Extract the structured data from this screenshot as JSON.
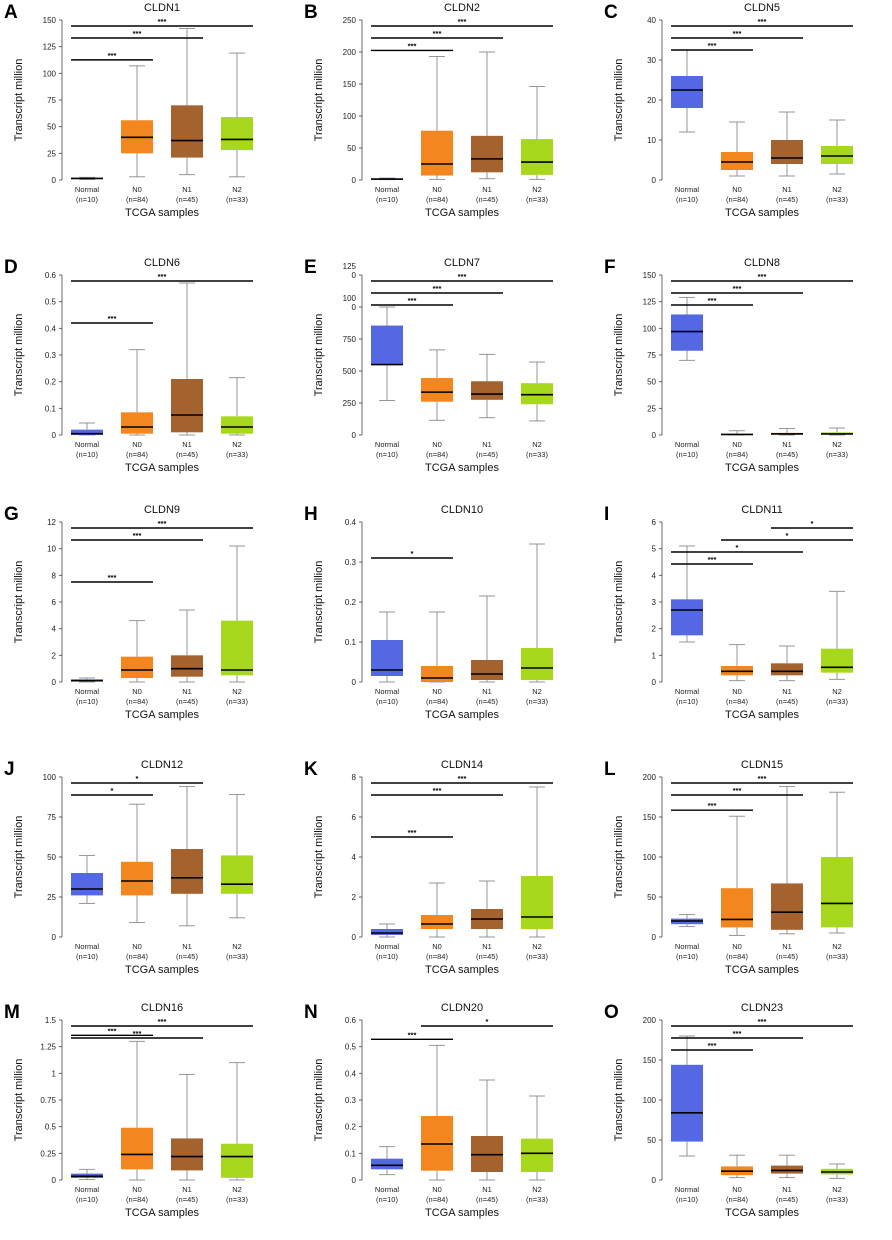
{
  "figure": {
    "x_axis_label": "TCGA samples",
    "y_axis_label": "Transcript million",
    "group_labels": [
      "Normal",
      "N0",
      "N1",
      "N2"
    ],
    "group_sizes": [
      "(n=10)",
      "(n=84)",
      "(n=45)",
      "(n=33)"
    ]
  },
  "colors": {
    "Normal": "#5468e4",
    "N0": "#f3861e",
    "N1": "#a4622f",
    "N2": "#a8d81e",
    "line": "#000000",
    "whisker": "#8a8a8a"
  },
  "chart_data": [
    {
      "label": "A",
      "type": "box",
      "title": "CLDN1",
      "ylim": [
        0,
        150
      ],
      "ticks": [
        "0",
        "25",
        "50",
        "75",
        "100",
        "125",
        "150"
      ],
      "groups": [
        {
          "name": "Normal",
          "min": 0.5,
          "q1": 1,
          "median": 1.5,
          "q3": 2,
          "max": 2.5
        },
        {
          "name": "N0",
          "min": 3,
          "q1": 25,
          "median": 40,
          "q3": 56,
          "max": 107
        },
        {
          "name": "N1",
          "min": 5,
          "q1": 21,
          "median": 37,
          "q3": 70,
          "max": 142
        },
        {
          "name": "N2",
          "min": 3,
          "q1": 28,
          "median": 38,
          "q3": 59,
          "max": 119
        }
      ],
      "comparisons": [
        {
          "from": 0,
          "to": 1,
          "label": "***"
        },
        {
          "from": 0,
          "to": 2,
          "label": "***"
        },
        {
          "from": 0,
          "to": 3,
          "label": "***"
        }
      ]
    },
    {
      "label": "B",
      "type": "box",
      "title": "CLDN2",
      "ylim": [
        0,
        250
      ],
      "ticks": [
        "0",
        "50",
        "100",
        "150",
        "200",
        "250"
      ],
      "groups": [
        {
          "name": "Normal",
          "min": 0.5,
          "q1": 1,
          "median": 1.5,
          "q3": 2,
          "max": 3
        },
        {
          "name": "N0",
          "min": 1,
          "q1": 7,
          "median": 25,
          "q3": 77,
          "max": 193
        },
        {
          "name": "N1",
          "min": 2,
          "q1": 12,
          "median": 33,
          "q3": 69,
          "max": 200
        },
        {
          "name": "N2",
          "min": 1,
          "q1": 8,
          "median": 28,
          "q3": 64,
          "max": 146
        }
      ],
      "comparisons": [
        {
          "from": 0,
          "to": 1,
          "label": "***"
        },
        {
          "from": 0,
          "to": 2,
          "label": "***"
        },
        {
          "from": 0,
          "to": 3,
          "label": "***"
        }
      ]
    },
    {
      "label": "C",
      "type": "box",
      "title": "CLDN5",
      "ylim": [
        0,
        40
      ],
      "ticks": [
        "0",
        "10",
        "20",
        "30",
        "40"
      ],
      "groups": [
        {
          "name": "Normal",
          "min": 12,
          "q1": 18,
          "median": 22.5,
          "q3": 26,
          "max": 32.5
        },
        {
          "name": "N0",
          "min": 1,
          "q1": 2.5,
          "median": 4.5,
          "q3": 7,
          "max": 14.5
        },
        {
          "name": "N1",
          "min": 1,
          "q1": 4,
          "median": 5.5,
          "q3": 10,
          "max": 17
        },
        {
          "name": "N2",
          "min": 1.5,
          "q1": 4,
          "median": 6,
          "q3": 8.5,
          "max": 15
        }
      ],
      "comparisons": [
        {
          "from": 0,
          "to": 1,
          "label": "***"
        },
        {
          "from": 0,
          "to": 2,
          "label": "***"
        },
        {
          "from": 0,
          "to": 3,
          "label": "***"
        }
      ]
    },
    {
      "label": "D",
      "type": "box",
      "title": "CLDN6",
      "ylim": [
        0,
        0.6
      ],
      "ticks": [
        "0",
        "0.1",
        "0.2",
        "0.3",
        "0.4",
        "0.5",
        "0.6"
      ],
      "groups": [
        {
          "name": "Normal",
          "min": 0,
          "q1": 0,
          "median": 0.005,
          "q3": 0.02,
          "max": 0.045
        },
        {
          "name": "N0",
          "min": 0,
          "q1": 0.005,
          "median": 0.03,
          "q3": 0.085,
          "max": 0.32
        },
        {
          "name": "N1",
          "min": 0,
          "q1": 0.01,
          "median": 0.075,
          "q3": 0.21,
          "max": 0.57
        },
        {
          "name": "N2",
          "min": 0,
          "q1": 0.005,
          "median": 0.03,
          "q3": 0.07,
          "max": 0.215
        }
      ],
      "comparisons": [
        {
          "from": 0,
          "to": 1,
          "label": "***"
        },
        {
          "from": 0,
          "to": 3,
          "label": "***"
        }
      ]
    },
    {
      "label": "E",
      "type": "box",
      "title": "CLDN7",
      "ylim": [
        0,
        1250
      ],
      "ticks": [
        "0",
        "250",
        "500",
        "750",
        "100\n0",
        "125\n0"
      ],
      "groups": [
        {
          "name": "Normal",
          "min": 270,
          "q1": 550,
          "median": 550,
          "q3": 855,
          "max": 1000
        },
        {
          "name": "N0",
          "min": 115,
          "q1": 260,
          "median": 335,
          "q3": 445,
          "max": 665
        },
        {
          "name": "N1",
          "min": 135,
          "q1": 275,
          "median": 320,
          "q3": 420,
          "max": 630
        },
        {
          "name": "N2",
          "min": 110,
          "q1": 240,
          "median": 315,
          "q3": 405,
          "max": 570
        }
      ],
      "comparisons": [
        {
          "from": 0,
          "to": 1,
          "label": "***"
        },
        {
          "from": 0,
          "to": 2,
          "label": "***"
        },
        {
          "from": 0,
          "to": 3,
          "label": "***"
        }
      ]
    },
    {
      "label": "F",
      "type": "box",
      "title": "CLDN8",
      "ylim": [
        0,
        150
      ],
      "ticks": [
        "0",
        "25",
        "50",
        "75",
        "100",
        "125",
        "150"
      ],
      "groups": [
        {
          "name": "Normal",
          "min": 70,
          "q1": 79,
          "median": 97,
          "q3": 113,
          "max": 129
        },
        {
          "name": "N0",
          "min": 0,
          "q1": 0,
          "median": 0.5,
          "q3": 1,
          "max": 4
        },
        {
          "name": "N1",
          "min": 0,
          "q1": 0.5,
          "median": 1,
          "q3": 2,
          "max": 6
        },
        {
          "name": "N2",
          "min": 0,
          "q1": 0.5,
          "median": 1,
          "q3": 2.5,
          "max": 6.5
        }
      ],
      "comparisons": [
        {
          "from": 0,
          "to": 1,
          "label": "***"
        },
        {
          "from": 0,
          "to": 2,
          "label": "***"
        },
        {
          "from": 0,
          "to": 3,
          "label": "***"
        }
      ]
    },
    {
      "label": "G",
      "type": "box",
      "title": "CLDN9",
      "ylim": [
        0,
        12
      ],
      "ticks": [
        "0",
        "2",
        "4",
        "6",
        "8",
        "10",
        "12"
      ],
      "groups": [
        {
          "name": "Normal",
          "min": 0,
          "q1": 0.05,
          "median": 0.1,
          "q3": 0.2,
          "max": 0.3
        },
        {
          "name": "N0",
          "min": 0,
          "q1": 0.3,
          "median": 0.9,
          "q3": 1.9,
          "max": 4.6
        },
        {
          "name": "N1",
          "min": 0,
          "q1": 0.4,
          "median": 1,
          "q3": 2,
          "max": 5.4
        },
        {
          "name": "N2",
          "min": 0,
          "q1": 0.5,
          "median": 0.9,
          "q3": 4.6,
          "max": 10.2
        }
      ],
      "comparisons": [
        {
          "from": 0,
          "to": 1,
          "label": "***"
        },
        {
          "from": 0,
          "to": 2,
          "label": "***"
        },
        {
          "from": 0,
          "to": 3,
          "label": "***"
        }
      ]
    },
    {
      "label": "H",
      "type": "box",
      "title": "CLDN10",
      "ylim": [
        0,
        0.4
      ],
      "ticks": [
        "0",
        "0.1",
        "0.2",
        "0.3",
        "0.4"
      ],
      "groups": [
        {
          "name": "Normal",
          "min": 0,
          "q1": 0.015,
          "median": 0.03,
          "q3": 0.105,
          "max": 0.175
        },
        {
          "name": "N0",
          "min": 0,
          "q1": 0,
          "median": 0.01,
          "q3": 0.04,
          "max": 0.175
        },
        {
          "name": "N1",
          "min": 0,
          "q1": 0.005,
          "median": 0.02,
          "q3": 0.055,
          "max": 0.215
        },
        {
          "name": "N2",
          "min": 0,
          "q1": 0.005,
          "median": 0.035,
          "q3": 0.085,
          "max": 0.345
        }
      ],
      "comparisons": [
        {
          "from": 0,
          "to": 1,
          "label": "*"
        }
      ]
    },
    {
      "label": "I",
      "type": "box",
      "title": "CLDN11",
      "ylim": [
        0,
        6
      ],
      "ticks": [
        "0",
        "1",
        "2",
        "3",
        "4",
        "5",
        "6"
      ],
      "groups": [
        {
          "name": "Normal",
          "min": 1.5,
          "q1": 1.75,
          "median": 2.7,
          "q3": 3.1,
          "max": 5.1
        },
        {
          "name": "N0",
          "min": 0.05,
          "q1": 0.25,
          "median": 0.4,
          "q3": 0.6,
          "max": 1.4
        },
        {
          "name": "N1",
          "min": 0.05,
          "q1": 0.25,
          "median": 0.4,
          "q3": 0.7,
          "max": 1.35
        },
        {
          "name": "N2",
          "min": 0.1,
          "q1": 0.35,
          "median": 0.55,
          "q3": 1.25,
          "max": 3.4
        }
      ],
      "comparisons": [
        {
          "from": 0,
          "to": 1,
          "label": "***"
        },
        {
          "from": 0,
          "to": 2,
          "label": "*"
        },
        {
          "from": 1,
          "to": 3,
          "label": "*"
        },
        {
          "from": 2,
          "to": 3,
          "label": "*"
        }
      ]
    },
    {
      "label": "J",
      "type": "box",
      "title": "CLDN12",
      "ylim": [
        0,
        100
      ],
      "ticks": [
        "0",
        "25",
        "50",
        "75",
        "100"
      ],
      "groups": [
        {
          "name": "Normal",
          "min": 21,
          "q1": 26,
          "median": 30,
          "q3": 40,
          "max": 51
        },
        {
          "name": "N0",
          "min": 9,
          "q1": 26,
          "median": 35,
          "q3": 47,
          "max": 83
        },
        {
          "name": "N1",
          "min": 7,
          "q1": 27,
          "median": 37,
          "q3": 55,
          "max": 94
        },
        {
          "name": "N2",
          "min": 12,
          "q1": 27,
          "median": 33,
          "q3": 51,
          "max": 89
        }
      ],
      "comparisons": [
        {
          "from": 0,
          "to": 1,
          "label": "*"
        },
        {
          "from": 0,
          "to": 2,
          "label": "*"
        }
      ]
    },
    {
      "label": "K",
      "type": "box",
      "title": "CLDN14",
      "ylim": [
        0,
        8
      ],
      "ticks": [
        "0",
        "2",
        "4",
        "6",
        "8"
      ],
      "groups": [
        {
          "name": "Normal",
          "min": 0,
          "q1": 0.1,
          "median": 0.2,
          "q3": 0.4,
          "max": 0.65
        },
        {
          "name": "N0",
          "min": 0,
          "q1": 0.4,
          "median": 0.65,
          "q3": 1.1,
          "max": 2.7
        },
        {
          "name": "N1",
          "min": 0,
          "q1": 0.4,
          "median": 0.9,
          "q3": 1.4,
          "max": 2.8
        },
        {
          "name": "N2",
          "min": 0,
          "q1": 0.4,
          "median": 1,
          "q3": 3.05,
          "max": 7.5
        }
      ],
      "comparisons": [
        {
          "from": 0,
          "to": 1,
          "label": "***"
        },
        {
          "from": 0,
          "to": 2,
          "label": "***"
        },
        {
          "from": 0,
          "to": 3,
          "label": "***"
        }
      ]
    },
    {
      "label": "L",
      "type": "box",
      "title": "CLDN15",
      "ylim": [
        0,
        200
      ],
      "ticks": [
        "0",
        "50",
        "100",
        "150",
        "200"
      ],
      "groups": [
        {
          "name": "Normal",
          "min": 13,
          "q1": 16,
          "median": 20,
          "q3": 23,
          "max": 28
        },
        {
          "name": "N0",
          "min": 2,
          "q1": 12,
          "median": 22,
          "q3": 61,
          "max": 151
        },
        {
          "name": "N1",
          "min": 4,
          "q1": 9,
          "median": 31,
          "q3": 67,
          "max": 188
        },
        {
          "name": "N2",
          "min": 5,
          "q1": 12,
          "median": 42,
          "q3": 100,
          "max": 181
        }
      ],
      "comparisons": [
        {
          "from": 0,
          "to": 1,
          "label": "***"
        },
        {
          "from": 0,
          "to": 2,
          "label": "***"
        },
        {
          "from": 0,
          "to": 3,
          "label": "***"
        }
      ]
    },
    {
      "label": "M",
      "type": "box",
      "title": "CLDN16",
      "ylim": [
        0,
        1.5
      ],
      "ticks": [
        "0",
        "0.25",
        "0.5",
        "0.75",
        "1",
        "1.25",
        "1.5"
      ],
      "groups": [
        {
          "name": "Normal",
          "min": 0.005,
          "q1": 0.02,
          "median": 0.035,
          "q3": 0.06,
          "max": 0.1
        },
        {
          "name": "N0",
          "min": 0,
          "q1": 0.1,
          "median": 0.24,
          "q3": 0.49,
          "max": 1.3
        },
        {
          "name": "N1",
          "min": 0,
          "q1": 0.09,
          "median": 0.22,
          "q3": 0.39,
          "max": 0.99
        },
        {
          "name": "N2",
          "min": 0,
          "q1": 0.02,
          "median": 0.22,
          "q3": 0.34,
          "max": 1.1
        }
      ],
      "comparisons": [
        {
          "from": 0,
          "to": 1,
          "label": "***"
        },
        {
          "from": 0,
          "to": 2,
          "label": "***"
        },
        {
          "from": 0,
          "to": 3,
          "label": "***"
        }
      ]
    },
    {
      "label": "N",
      "type": "box",
      "title": "CLDN20",
      "ylim": [
        0,
        0.6
      ],
      "ticks": [
        "0",
        "0.1",
        "0.2",
        "0.3",
        "0.4",
        "0.5",
        "0.6"
      ],
      "groups": [
        {
          "name": "Normal",
          "min": 0.02,
          "q1": 0.04,
          "median": 0.055,
          "q3": 0.08,
          "max": 0.125
        },
        {
          "name": "N0",
          "min": 0,
          "q1": 0.035,
          "median": 0.135,
          "q3": 0.24,
          "max": 0.505
        },
        {
          "name": "N1",
          "min": 0,
          "q1": 0.03,
          "median": 0.095,
          "q3": 0.165,
          "max": 0.375
        },
        {
          "name": "N2",
          "min": 0,
          "q1": 0.03,
          "median": 0.1,
          "q3": 0.155,
          "max": 0.315
        }
      ],
      "comparisons": [
        {
          "from": 0,
          "to": 1,
          "label": "***"
        },
        {
          "from": 1,
          "to": 3,
          "label": "*"
        }
      ]
    },
    {
      "label": "O",
      "type": "box",
      "title": "CLDN23",
      "ylim": [
        0,
        200
      ],
      "ticks": [
        "0",
        "50",
        "100",
        "150",
        "200"
      ],
      "groups": [
        {
          "name": "Normal",
          "min": 30,
          "q1": 48,
          "median": 84,
          "q3": 144,
          "max": 180
        },
        {
          "name": "N0",
          "min": 3,
          "q1": 6,
          "median": 11,
          "q3": 17,
          "max": 31
        },
        {
          "name": "N1",
          "min": 3,
          "q1": 8,
          "median": 12,
          "q3": 18,
          "max": 31
        },
        {
          "name": "N2",
          "min": 2,
          "q1": 7,
          "median": 10,
          "q3": 14,
          "max": 20
        }
      ],
      "comparisons": [
        {
          "from": 0,
          "to": 1,
          "label": "***"
        },
        {
          "from": 0,
          "to": 2,
          "label": "***"
        },
        {
          "from": 0,
          "to": 3,
          "label": "***"
        }
      ]
    }
  ]
}
